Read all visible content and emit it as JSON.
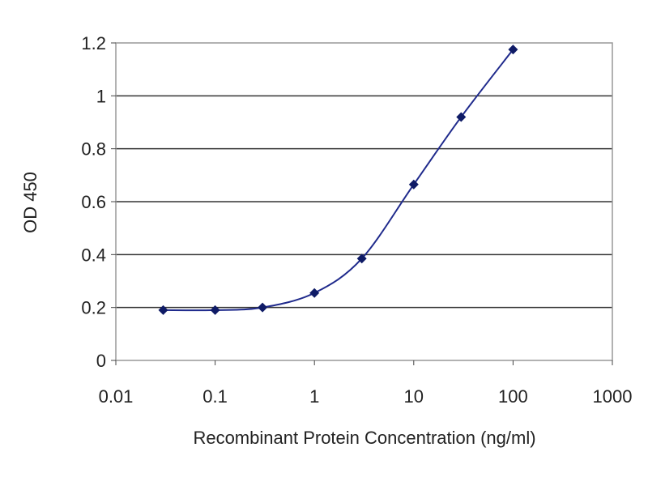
{
  "chart_data": {
    "type": "line",
    "title": "",
    "xlabel": "Recombinant Protein Concentration (ng/ml)",
    "ylabel": "OD 450",
    "x_scale": "log",
    "xlim": [
      0.01,
      1000
    ],
    "ylim": [
      0,
      1.2
    ],
    "x_ticks": [
      0.01,
      0.1,
      1,
      10,
      100,
      1000
    ],
    "x_tick_labels": [
      "0.01",
      "0.1",
      "1",
      "10",
      "100",
      "1000"
    ],
    "y_ticks": [
      0,
      0.2,
      0.4,
      0.6,
      0.8,
      1,
      1.2
    ],
    "y_tick_labels": [
      "0",
      "0.2",
      "0.4",
      "0.6",
      "0.8",
      "1",
      "1.2"
    ],
    "grid": "horizontal",
    "legend": "none",
    "series": [
      {
        "x": [
          0.03,
          0.1,
          0.3,
          1,
          3,
          10,
          30,
          100
        ],
        "y": [
          0.19,
          0.19,
          0.2,
          0.255,
          0.385,
          0.665,
          0.92,
          1.175
        ]
      }
    ],
    "colors": {
      "line": "#1f2a8c",
      "marker": "#0f1b66",
      "grid": "#333333",
      "frame": "#999999"
    }
  }
}
